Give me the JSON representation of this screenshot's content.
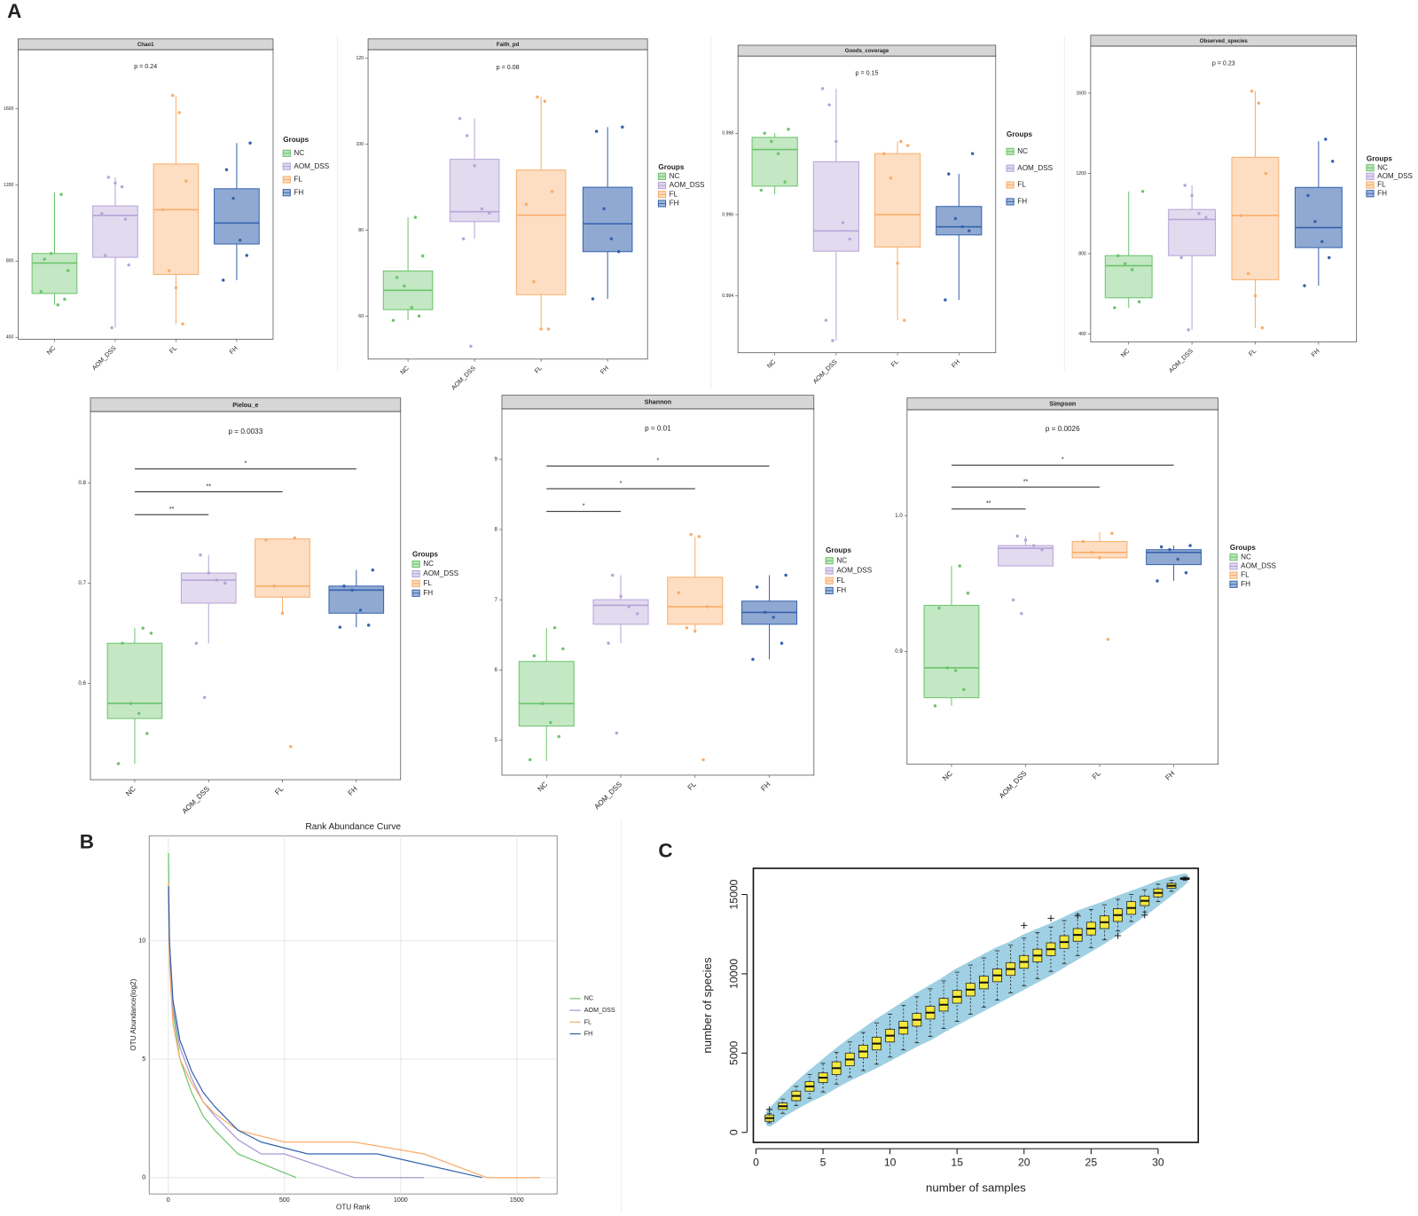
{
  "panels": [
    "A",
    "B",
    "C"
  ],
  "chart_data": [
    {
      "type": "box",
      "title": "Chao1",
      "annotation": "p = 0.24",
      "legend_title": "Groups",
      "categories": [
        "NC",
        "AOM_DSS",
        "FL",
        "FH"
      ],
      "ylim": [
        390,
        1910
      ],
      "yticks": [
        400,
        800,
        1200,
        1600
      ],
      "series": [
        {
          "name": "NC",
          "color": "#6cc46c",
          "min": 570,
          "q1": 630,
          "median": 790,
          "q3": 840,
          "max": 1160,
          "points": [
            640,
            600,
            570,
            840,
            810,
            750,
            1150
          ]
        },
        {
          "name": "AOM_DSS",
          "color": "#b7a4d8",
          "min": 450,
          "q1": 820,
          "median": 1040,
          "q3": 1090,
          "max": 1240,
          "points": [
            450,
            830,
            780,
            1190,
            1210,
            1240,
            1050,
            1020
          ]
        },
        {
          "name": "FL",
          "color": "#f9ad6a",
          "min": 470,
          "q1": 730,
          "median": 1070,
          "q3": 1310,
          "max": 1670,
          "points": [
            470,
            660,
            750,
            1070,
            1220,
            1580,
            1670
          ]
        },
        {
          "name": "FH",
          "color": "#3463ad",
          "min": 700,
          "q1": 890,
          "median": 1000,
          "q3": 1180,
          "max": 1420,
          "points": [
            700,
            830,
            910,
            1130,
            1280,
            1420
          ]
        }
      ]
    },
    {
      "type": "box",
      "title": "Faith_pd",
      "annotation": "p = 0.08",
      "legend_title": "Groups",
      "categories": [
        "NC",
        "AOM_DSS",
        "FL",
        "FH"
      ],
      "ylim": [
        50,
        122
      ],
      "yticks": [
        60,
        80,
        100,
        120
      ],
      "series": [
        {
          "name": "NC",
          "color": "#6cc46c",
          "min": 59,
          "q1": 61.5,
          "median": 66,
          "q3": 70.5,
          "max": 83,
          "points": [
            59,
            60,
            62,
            67,
            69,
            74,
            83
          ]
        },
        {
          "name": "AOM_DSS",
          "color": "#b7a4d8",
          "min": 78,
          "q1": 82,
          "median": 84.3,
          "q3": 96.5,
          "max": 106,
          "points": [
            53,
            78,
            84,
            85,
            95,
            102,
            106
          ]
        },
        {
          "name": "FL",
          "color": "#f9ad6a",
          "min": 57,
          "q1": 65,
          "median": 83.5,
          "q3": 94,
          "max": 111,
          "points": [
            57,
            57,
            68,
            86,
            89,
            110,
            111
          ]
        },
        {
          "name": "FH",
          "color": "#3463ad",
          "min": 64,
          "q1": 75,
          "median": 81.5,
          "q3": 90,
          "max": 104,
          "points": [
            64,
            75,
            78,
            85,
            103,
            104
          ]
        }
      ]
    },
    {
      "type": "box",
      "title": "Goods_coverage",
      "annotation": "p = 0.15",
      "legend_title": "Groups",
      "categories": [
        "NC",
        "AOM_DSS",
        "FL",
        "FH"
      ],
      "ylim": [
        0.9926,
        0.9999
      ],
      "yticks": [
        0.994,
        0.996,
        0.998
      ],
      "series": [
        {
          "name": "NC",
          "color": "#6cc46c",
          "min": 0.9965,
          "q1": 0.9967,
          "median": 0.9976,
          "q3": 0.9979,
          "max": 0.998,
          "points": [
            0.9966,
            0.9968,
            0.9975,
            0.9978,
            0.998,
            0.9981
          ]
        },
        {
          "name": "AOM_DSS",
          "color": "#b7a4d8",
          "min": 0.9929,
          "q1": 0.9951,
          "median": 0.9956,
          "q3": 0.9973,
          "max": 0.9991,
          "points": [
            0.9929,
            0.9934,
            0.9954,
            0.9958,
            0.9978,
            0.9987,
            0.9991
          ]
        },
        {
          "name": "FL",
          "color": "#f9ad6a",
          "min": 0.9934,
          "q1": 0.9952,
          "median": 0.996,
          "q3": 0.9975,
          "max": 0.9978,
          "points": [
            0.9934,
            0.9948,
            0.9969,
            0.9975,
            0.9977,
            0.9978
          ]
        },
        {
          "name": "FH",
          "color": "#3463ad",
          "min": 0.9939,
          "q1": 0.9955,
          "median": 0.9957,
          "q3": 0.9962,
          "max": 0.997,
          "points": [
            0.9939,
            0.9956,
            0.9957,
            0.9959,
            0.997,
            0.9975
          ]
        }
      ]
    },
    {
      "type": "box",
      "title": "Observed_species",
      "annotation": "p = 0.23",
      "legend_title": "Groups",
      "categories": [
        "NC",
        "AOM_DSS",
        "FL",
        "FH"
      ],
      "ylim": [
        360,
        1834
      ],
      "yticks": [
        400,
        800,
        1200,
        1600
      ],
      "series": [
        {
          "name": "NC",
          "color": "#6cc46c",
          "min": 530,
          "q1": 580,
          "median": 740,
          "q3": 790,
          "max": 1110,
          "points": [
            530,
            560,
            720,
            750,
            790,
            1110
          ]
        },
        {
          "name": "AOM_DSS",
          "color": "#b7a4d8",
          "min": 420,
          "q1": 790,
          "median": 970,
          "q3": 1020,
          "max": 1140,
          "points": [
            420,
            780,
            980,
            1000,
            1090,
            1140
          ]
        },
        {
          "name": "FL",
          "color": "#f9ad6a",
          "min": 430,
          "q1": 670,
          "median": 990,
          "q3": 1280,
          "max": 1610,
          "points": [
            430,
            590,
            700,
            990,
            1200,
            1550,
            1610
          ]
        },
        {
          "name": "FH",
          "color": "#3463ad",
          "min": 640,
          "q1": 830,
          "median": 930,
          "q3": 1130,
          "max": 1360,
          "points": [
            640,
            780,
            860,
            960,
            1090,
            1260,
            1370
          ]
        }
      ]
    },
    {
      "type": "box",
      "title": "Pielou_e",
      "annotation": "p = 0.0033",
      "legend_title": "Groups",
      "categories": [
        "NC",
        "AOM_DSS",
        "FL",
        "FH"
      ],
      "ylim": [
        0.504,
        0.871
      ],
      "yticks": [
        0.6,
        0.7,
        0.8
      ],
      "comparisons": [
        {
          "groups": [
            0,
            1
          ],
          "label": "**"
        },
        {
          "groups": [
            0,
            2
          ],
          "label": "**"
        },
        {
          "groups": [
            0,
            3
          ],
          "label": "*"
        }
      ],
      "series": [
        {
          "name": "NC",
          "color": "#6cc46c",
          "min": 0.52,
          "q1": 0.565,
          "median": 0.58,
          "q3": 0.64,
          "max": 0.655,
          "points": [
            0.52,
            0.55,
            0.57,
            0.58,
            0.64,
            0.65,
            0.655
          ]
        },
        {
          "name": "AOM_DSS",
          "color": "#b7a4d8",
          "min": 0.64,
          "q1": 0.68,
          "median": 0.703,
          "q3": 0.71,
          "max": 0.728,
          "points": [
            0.586,
            0.64,
            0.7,
            0.703,
            0.71,
            0.728
          ]
        },
        {
          "name": "FL",
          "color": "#f9ad6a",
          "min": 0.67,
          "q1": 0.686,
          "median": 0.697,
          "q3": 0.744,
          "max": 0.745,
          "points": [
            0.537,
            0.67,
            0.697,
            0.743,
            0.745
          ]
        },
        {
          "name": "FH",
          "color": "#3463ad",
          "min": 0.656,
          "q1": 0.67,
          "median": 0.693,
          "q3": 0.697,
          "max": 0.713,
          "points": [
            0.656,
            0.658,
            0.673,
            0.693,
            0.697,
            0.713
          ]
        }
      ]
    },
    {
      "type": "box",
      "title": "Shannon",
      "annotation": "p = 0.01",
      "legend_title": "Groups",
      "categories": [
        "NC",
        "AOM_DSS",
        "FL",
        "FH"
      ],
      "ylim": [
        4.5,
        9.72
      ],
      "yticks": [
        5,
        6,
        7,
        8,
        9
      ],
      "comparisons": [
        {
          "groups": [
            0,
            1
          ],
          "label": "*"
        },
        {
          "groups": [
            0,
            2
          ],
          "label": "*"
        },
        {
          "groups": [
            0,
            3
          ],
          "label": "*"
        }
      ],
      "series": [
        {
          "name": "NC",
          "color": "#6cc46c",
          "min": 4.7,
          "q1": 5.2,
          "median": 5.52,
          "q3": 6.12,
          "max": 6.6,
          "points": [
            4.72,
            5.05,
            5.25,
            5.52,
            6.2,
            6.3,
            6.6
          ]
        },
        {
          "name": "AOM_DSS",
          "color": "#b7a4d8",
          "min": 6.38,
          "q1": 6.65,
          "median": 6.92,
          "q3": 7.0,
          "max": 7.35,
          "points": [
            5.1,
            6.38,
            6.8,
            6.9,
            7.05,
            7.35
          ]
        },
        {
          "name": "FL",
          "color": "#f9ad6a",
          "min": 6.55,
          "q1": 6.65,
          "median": 6.9,
          "q3": 7.32,
          "max": 7.9,
          "points": [
            4.72,
            6.55,
            6.6,
            7.1,
            6.9,
            7.9,
            7.93
          ]
        },
        {
          "name": "FH",
          "color": "#3463ad",
          "min": 6.15,
          "q1": 6.65,
          "median": 6.82,
          "q3": 6.98,
          "max": 7.35,
          "points": [
            6.15,
            6.38,
            6.75,
            6.82,
            7.18,
            7.35
          ]
        }
      ]
    },
    {
      "type": "box",
      "title": "Simpson",
      "annotation": "p = 0.0026",
      "legend_title": "Groups",
      "categories": [
        "NC",
        "AOM_DSS",
        "FL",
        "FH"
      ],
      "ylim": [
        0.817,
        1.078
      ],
      "yticks": [
        0.9,
        {
          "value": 1,
          "label": "1.0"
        }
      ],
      "comparisons": [
        {
          "groups": [
            0,
            1
          ],
          "label": "**"
        },
        {
          "groups": [
            0,
            2
          ],
          "label": "**"
        },
        {
          "groups": [
            0,
            3
          ],
          "label": "*"
        }
      ],
      "series": [
        {
          "name": "NC",
          "color": "#6cc46c",
          "min": 0.86,
          "q1": 0.866,
          "median": 0.888,
          "q3": 0.934,
          "max": 0.963,
          "points": [
            0.86,
            0.872,
            0.886,
            0.888,
            0.932,
            0.943,
            0.963
          ]
        },
        {
          "name": "AOM_DSS",
          "color": "#b7a4d8",
          "min": 0.963,
          "q1": 0.963,
          "median": 0.976,
          "q3": 0.978,
          "max": 0.985,
          "points": [
            0.928,
            0.938,
            0.975,
            0.978,
            0.982,
            0.985
          ]
        },
        {
          "name": "FL",
          "color": "#f9ad6a",
          "min": 0.968,
          "q1": 0.969,
          "median": 0.973,
          "q3": 0.981,
          "max": 0.988,
          "points": [
            0.909,
            0.969,
            0.973,
            0.981,
            0.987
          ]
        },
        {
          "name": "FH",
          "color": "#3463ad",
          "min": 0.952,
          "q1": 0.964,
          "median": 0.973,
          "q3": 0.975,
          "max": 0.978,
          "points": [
            0.952,
            0.958,
            0.968,
            0.975,
            0.977,
            0.978
          ]
        }
      ]
    },
    {
      "type": "line",
      "title": "Rank Abundance Curve",
      "xlabel": "OTU Rank",
      "ylabel": "OTU Abundance(log2)",
      "grid": true,
      "xlim": [
        -82,
        1673
      ],
      "ylim": [
        -0.69,
        14.43
      ],
      "xticks": [
        0,
        500,
        1000,
        1500
      ],
      "yticks": [
        0,
        5,
        10
      ],
      "series": [
        {
          "name": "NC",
          "color": "#6cc46c",
          "x": [
            1,
            5,
            20,
            50,
            100,
            150,
            200,
            300,
            400,
            550
          ],
          "values": [
            13.7,
            10,
            7,
            5,
            3.6,
            2.6,
            2,
            1,
            0.6,
            0
          ]
        },
        {
          "name": "AOM_DSS",
          "color": "#a996d6",
          "x": [
            1,
            5,
            20,
            50,
            100,
            150,
            200,
            300,
            400,
            500,
            800,
            1100
          ],
          "values": [
            12,
            9.5,
            7.2,
            5.5,
            4.2,
            3.2,
            2.6,
            1.6,
            1,
            1,
            0,
            0
          ]
        },
        {
          "name": "FL",
          "color": "#f9ad6a",
          "x": [
            1,
            5,
            20,
            50,
            100,
            150,
            200,
            300,
            500,
            800,
            1100,
            1370,
            1600
          ],
          "values": [
            12.5,
            9,
            6.5,
            5,
            4,
            3.2,
            2.7,
            2,
            1.5,
            1.5,
            1,
            0,
            0
          ]
        },
        {
          "name": "FH",
          "color": "#3463ad",
          "x": [
            1,
            5,
            20,
            50,
            100,
            150,
            200,
            300,
            400,
            600,
            900,
            1350
          ],
          "values": [
            12.3,
            10,
            7.5,
            5.8,
            4.5,
            3.6,
            3,
            2,
            1.5,
            1,
            1,
            0
          ]
        }
      ]
    },
    {
      "type": "accumulation",
      "xlabel": "number of samples",
      "ylabel": "number of species",
      "box_color": "#f4e93c",
      "band_color": "#9fd0e3",
      "xlim": [
        -0.2,
        33
      ],
      "ylim": [
        -630,
        16650
      ],
      "xticks": [
        0,
        5,
        10,
        15,
        20,
        25,
        30
      ],
      "yticks": [
        0,
        5000,
        10000,
        15000
      ],
      "x": [
        1,
        2,
        3,
        4,
        5,
        6,
        7,
        8,
        9,
        10,
        11,
        12,
        13,
        14,
        15,
        16,
        17,
        18,
        19,
        20,
        21,
        22,
        23,
        24,
        25,
        26,
        27,
        28,
        29,
        30,
        31,
        32
      ],
      "min": [
        600,
        1200,
        1700,
        2150,
        2550,
        3050,
        3500,
        3900,
        4300,
        4750,
        5200,
        5650,
        6050,
        6550,
        7000,
        7450,
        7900,
        8350,
        8800,
        9250,
        9700,
        10150,
        10650,
        11150,
        11650,
        12150,
        12700,
        13300,
        13900,
        14550,
        15200,
        15900
      ],
      "q1": [
        700,
        1450,
        2000,
        2600,
        3150,
        3650,
        4200,
        4700,
        5200,
        5700,
        6200,
        6700,
        7150,
        7650,
        8150,
        8600,
        9050,
        9500,
        9900,
        10350,
        10750,
        11150,
        11600,
        12050,
        12450,
        12850,
        13300,
        13750,
        14300,
        14850,
        15400,
        15950
      ],
      "median": [
        900,
        1650,
        2300,
        2900,
        3450,
        4050,
        4600,
        5100,
        5600,
        6100,
        6600,
        7100,
        7550,
        8050,
        8550,
        9000,
        9450,
        9900,
        10300,
        10750,
        11150,
        11550,
        12000,
        12450,
        12850,
        13250,
        13700,
        14150,
        14600,
        15100,
        15550,
        16000
      ],
      "q3": [
        1100,
        1850,
        2600,
        3200,
        3750,
        4450,
        5000,
        5500,
        6000,
        6500,
        7000,
        7500,
        7950,
        8450,
        8950,
        9400,
        9850,
        10300,
        10700,
        11150,
        11550,
        11950,
        12400,
        12850,
        13250,
        13650,
        14100,
        14550,
        14900,
        15350,
        15700,
        16050
      ],
      "max": [
        1200,
        2100,
        2900,
        3650,
        4350,
        5050,
        5700,
        6300,
        6900,
        7450,
        8000,
        8550,
        9050,
        9550,
        10100,
        10550,
        11000,
        11450,
        11800,
        12250,
        12600,
        12950,
        13350,
        13750,
        14050,
        14350,
        14700,
        15000,
        15300,
        15650,
        15900,
        16100
      ],
      "outliers": {
        "x": [
          1,
          20,
          22,
          24,
          27,
          29
        ],
        "values": [
          1450,
          13050,
          13500,
          13650,
          12400,
          13700
        ]
      }
    }
  ]
}
